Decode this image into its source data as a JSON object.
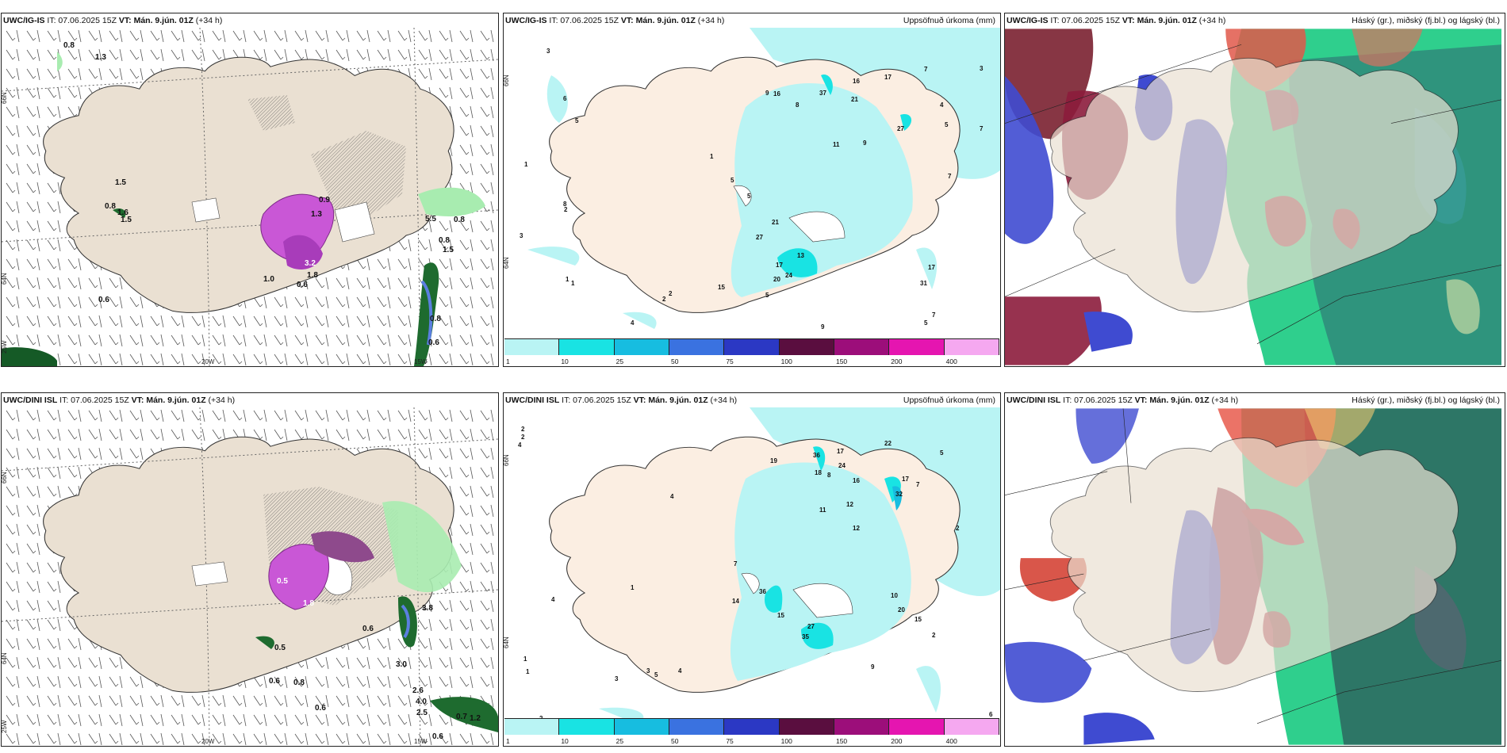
{
  "panels": {
    "top_left": {
      "model": "UWC/IG-IS",
      "it": "IT: 07.06.2025 15Z",
      "vt": "VT: Mán. 9.jún. 01Z",
      "lead": "(+34 h)",
      "right": ""
    },
    "top_mid": {
      "model": "UWC/IG-IS",
      "it": "IT: 07.06.2025 15Z",
      "vt": "VT: Mán. 9.jún. 01Z",
      "lead": "(+34 h)",
      "right": "Uppsöfnuð úrkoma (mm)"
    },
    "top_right": {
      "model": "UWC/IG-IS",
      "it": "IT: 07.06.2025 15Z",
      "vt": "VT: Mán. 9.jún. 01Z",
      "lead": "(+34 h)",
      "right": "Háský (gr.), miðský (fj.bl.) og lágský (bl.)"
    },
    "bot_left": {
      "model": "UWC/DINI ISL",
      "it": "IT: 07.06.2025 15Z",
      "vt": "VT: Mán. 9.jún. 01Z",
      "lead": "(+34 h)",
      "right": ""
    },
    "bot_mid": {
      "model": "UWC/DINI ISL",
      "it": "IT: 07.06.2025 15Z",
      "vt": "VT: Mán. 9.jún. 01Z",
      "lead": "(+34 h)",
      "right": "Uppsöfnuð úrkoma (mm)"
    },
    "bot_right": {
      "model": "UWC/DINI ISL",
      "it": "IT: 07.06.2025 15Z",
      "vt": "VT: Mán. 9.jún. 01Z",
      "lead": "(+34 h)",
      "right": "Háský (gr.), miðský (fj.bl.) og lágský (bl.)"
    }
  },
  "axes": {
    "lat66": "66N",
    "lat64": "64N",
    "lat65": "65N",
    "lon20": "20W",
    "lon15": "15W",
    "lon25": "25W"
  },
  "colorbar": {
    "labels": [
      "1",
      "10",
      "25",
      "50",
      "75",
      "100",
      "150",
      "200",
      "400"
    ],
    "colors": [
      "#b9f4f4",
      "#19e3e3",
      "#17bde0",
      "#3a72e0",
      "#2b38c4",
      "#5a0e3f",
      "#9c0e7a",
      "#e515b0",
      "#f5a8f0"
    ]
  },
  "precip_labels_top": [
    "3",
    "1",
    "2",
    "6",
    "5",
    "9",
    "8",
    "1",
    "16",
    "37",
    "16",
    "17",
    "21",
    "27",
    "11",
    "9",
    "4",
    "3",
    "7",
    "5",
    "7",
    "3",
    "1",
    "2",
    "5",
    "5",
    "21",
    "27",
    "17",
    "20",
    "24",
    "13",
    "15",
    "5",
    "9",
    "19",
    "31",
    "17",
    "7",
    "5",
    "8",
    "6",
    "1",
    "4",
    "2",
    "3",
    "7"
  ],
  "precip_labels_bot": [
    "2",
    "4",
    "2",
    "19",
    "36",
    "17",
    "24",
    "18",
    "8",
    "22",
    "16",
    "17",
    "32",
    "12",
    "11",
    "5",
    "4",
    "7",
    "36",
    "14",
    "27",
    "35",
    "15",
    "16",
    "10",
    "15",
    "1",
    "3",
    "5",
    "24",
    "1",
    "1",
    "2",
    "16",
    "7",
    "4",
    "2",
    "3",
    "6",
    "9",
    "20",
    "2",
    "4",
    "1",
    "12"
  ],
  "precip_values_topleft": [
    "0.8",
    "1.3",
    "1.5",
    "0.8",
    "1.6",
    "1.5",
    "0.9",
    "1.3",
    "1.0",
    "0.6",
    "1.8",
    "0.6",
    "5.5",
    "0.8",
    "0.8",
    "1.5",
    "0.8",
    "3.2",
    "0.6"
  ],
  "precip_values_botleft": [
    "0.5",
    "0.6",
    "0.8",
    "0.6",
    "3.0",
    "2.6",
    "4.0",
    "2.5",
    "0.7",
    "1.2",
    "0.6",
    "0.6",
    "1.8",
    "3.8",
    "0.5"
  ]
}
